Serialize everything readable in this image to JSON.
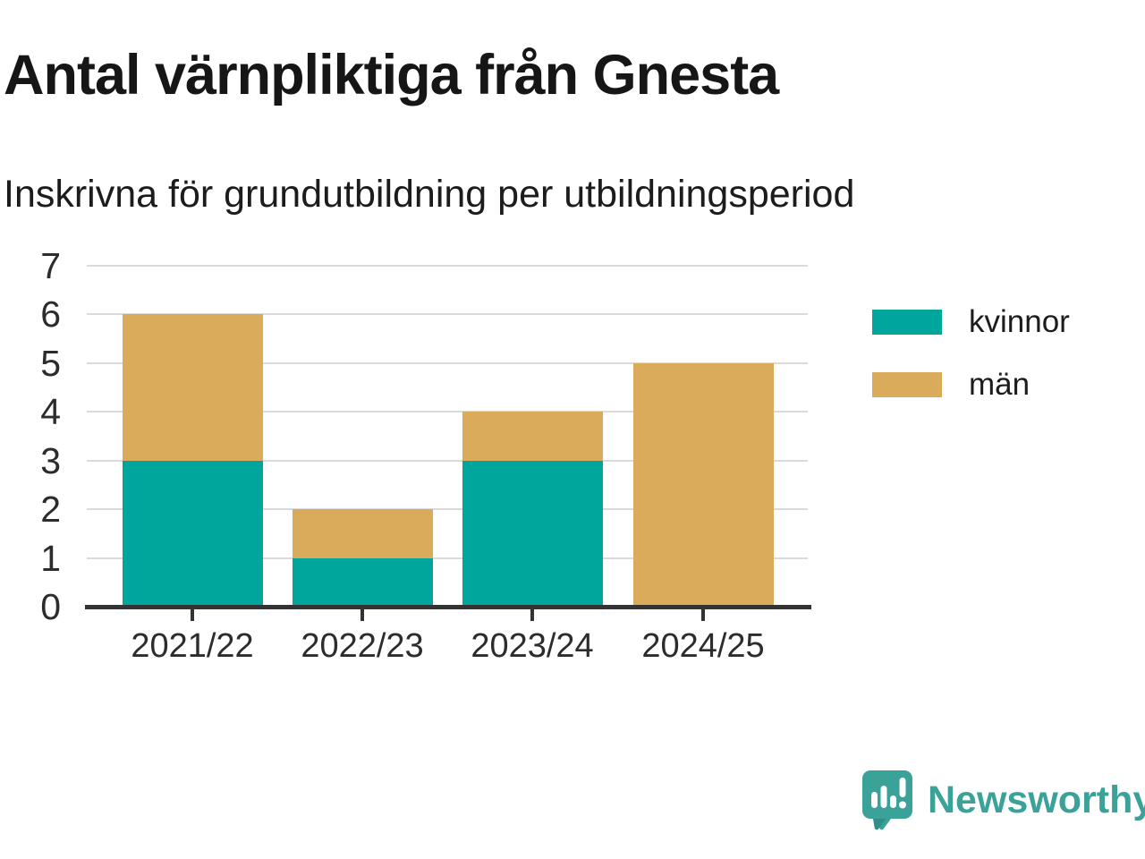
{
  "header": {
    "title": "Antal värnpliktiga från Gnesta",
    "subtitle": "Inskrivna för grundutbildning per utbildningsperiod"
  },
  "chart_data": {
    "type": "bar",
    "stacked": true,
    "categories": [
      "2021/22",
      "2022/23",
      "2023/24",
      "2024/25"
    ],
    "series": [
      {
        "name": "kvinnor",
        "color": "#00a69b",
        "values": [
          3,
          1,
          3,
          0
        ]
      },
      {
        "name": "män",
        "color": "#d9ab5a",
        "values": [
          3,
          1,
          1,
          5
        ]
      }
    ],
    "totals": [
      6,
      2,
      4,
      5
    ],
    "title": "Antal värnpliktiga från Gnesta",
    "subtitle": "Inskrivna för grundutbildning per utbildningsperiod",
    "xlabel": "",
    "ylabel": "",
    "ylim": [
      0,
      7
    ],
    "yticks": [
      0,
      1,
      2,
      3,
      4,
      5,
      6,
      7
    ],
    "grid": "horizontal",
    "legend_position": "right"
  },
  "legend": {
    "items": [
      {
        "label": "kvinnor",
        "color": "#00a69b"
      },
      {
        "label": "män",
        "color": "#d9ab5a"
      }
    ]
  },
  "colors": {
    "bar_kvinnor": "#00a69b",
    "bar_man": "#d9ab5a",
    "gridline": "#dadada",
    "axis": "#333333",
    "text": "#1c1c1c",
    "logo": "#3ba29a"
  },
  "branding": {
    "logo_text": "Newsworthy",
    "logo_icon": "bar-chart-speech-bubble-icon"
  }
}
